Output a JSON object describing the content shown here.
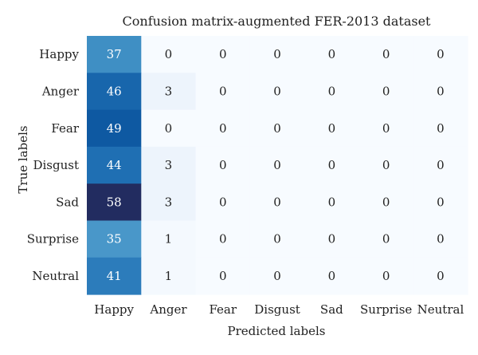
{
  "chart_data": {
    "type": "heatmap",
    "title": "Confusion matrix-augmented FER-2013 dataset",
    "xlabel": "Predicted labels",
    "ylabel": "True labels",
    "x_categories": [
      "Happy",
      "Anger",
      "Fear",
      "Disgust",
      "Sad",
      "Surprise",
      "Neutral"
    ],
    "y_categories": [
      "Happy",
      "Anger",
      "Fear",
      "Disgust",
      "Sad",
      "Surprise",
      "Neutral"
    ],
    "values": [
      [
        37,
        0,
        0,
        0,
        0,
        0,
        0
      ],
      [
        46,
        3,
        0,
        0,
        0,
        0,
        0
      ],
      [
        49,
        0,
        0,
        0,
        0,
        0,
        0
      ],
      [
        44,
        3,
        0,
        0,
        0,
        0,
        0
      ],
      [
        58,
        3,
        0,
        0,
        0,
        0,
        0
      ],
      [
        35,
        1,
        0,
        0,
        0,
        0,
        0
      ],
      [
        41,
        1,
        0,
        0,
        0,
        0,
        0
      ]
    ],
    "colormap": "Blues",
    "value_range": [
      0,
      58
    ],
    "legend": "none",
    "grid": false
  }
}
